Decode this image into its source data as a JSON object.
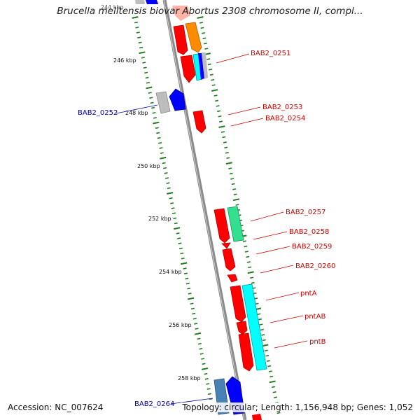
{
  "title": "Brucella melitensis biovar Abortus 2308 chromosome II, compl...",
  "footer": {
    "accession": "Accession: NC_007624",
    "summary": "Topology: circular; Length: 1,156,948 bp; Genes: 1,052"
  },
  "colors": {
    "backbone": "#8c8c8c",
    "tick": "#1e7b1e",
    "forward_label": "#cc0000",
    "reverse_label": "#0000aa",
    "gene_red": "#ff0000",
    "gene_orange": "#ff8c00",
    "gene_blue": "#0000ff",
    "gene_gray": "#bdbdbd",
    "gene_cyan": "#00ffff",
    "gene_green": "#33e08f",
    "gene_steelblue": "#4682b4"
  },
  "kbp_labels": [
    "244 kbp",
    "246 kbp",
    "248 kbp",
    "250 kbp",
    "252 kbp",
    "254 kbp",
    "256 kbp",
    "258 kbp"
  ],
  "gene_labels": {
    "forward": [
      "BAB2_0251",
      "BAB2_0253",
      "BAB2_0254",
      "BAB2_0257",
      "BAB2_0258",
      "BAB2_0259",
      "BAB2_0260",
      "pntA",
      "pntAB",
      "pntB"
    ],
    "reverse": [
      "BAB2_0252",
      "BAB2_0264"
    ]
  }
}
